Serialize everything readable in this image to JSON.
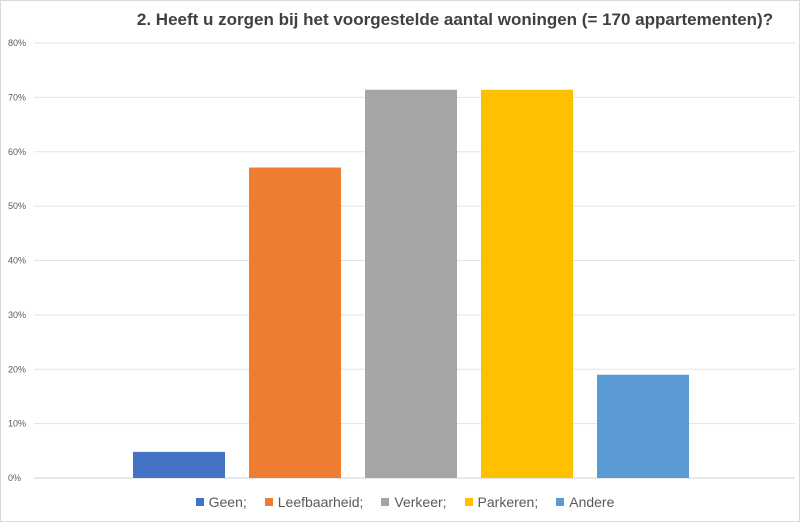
{
  "chart_data": {
    "type": "bar",
    "title": "2. Heeft u zorgen bij het voorgestelde aantal woningen (= 170 appartementen)?",
    "categories": [
      "Geen;",
      "Leefbaarheid;",
      "Verkeer;",
      "Parkeren;",
      "Andere"
    ],
    "values": [
      4.8,
      57.1,
      71.4,
      71.4,
      19.0
    ],
    "colors": [
      "#4472c4",
      "#ed7d31",
      "#a5a5a5",
      "#ffc000",
      "#5b9bd5"
    ],
    "ylim": [
      0,
      80
    ],
    "yticks": [
      "0%",
      "10%",
      "20%",
      "30%",
      "40%",
      "50%",
      "60%",
      "70%",
      "80%"
    ],
    "xlabel": "",
    "ylabel": "",
    "grid": true,
    "legend": "bottom"
  }
}
